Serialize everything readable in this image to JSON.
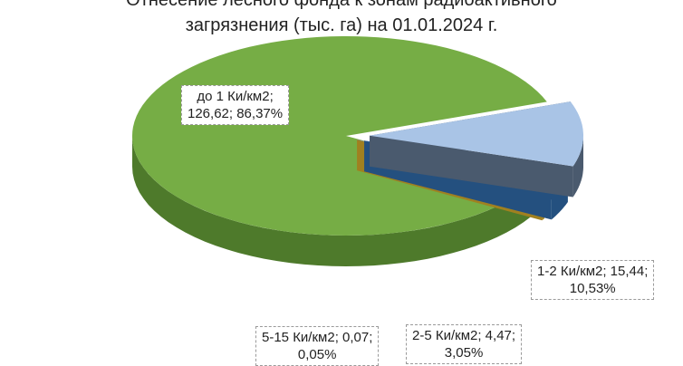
{
  "chart_data": {
    "type": "pie",
    "title_lines": [
      "Отнесение лесного фонда к зонам радиоактивного",
      "загрязнения  (тыс. га) на 01.01.2024 г."
    ],
    "slices": [
      {
        "category": "до 1 Ки/км2",
        "value": 126.62,
        "percent": 86.37,
        "label_line1": "до 1 Ки/км2;",
        "label_line2": "126,62; 86,37%",
        "color": "#76AD45",
        "side": "#4E7A2B"
      },
      {
        "category": "1-2 Ки/км2",
        "value": 15.44,
        "percent": 10.53,
        "label_line1": "1-2 Ки/км2; 15,44;",
        "label_line2": "10,53%",
        "color": "#A9C4E6",
        "side": "#4A5A6E"
      },
      {
        "category": "2-5 Ки/км2",
        "value": 4.47,
        "percent": 3.05,
        "label_line1": "2-5 Ки/км2; 4,47;",
        "label_line2": "3,05%",
        "color": "#3E7FC4",
        "side": "#24507F"
      },
      {
        "category": "5-15 Ки/км2",
        "value": 0.07,
        "percent": 0.05,
        "label_line1": "5-15 Ки/км2; 0,07;",
        "label_line2": "0,05%",
        "color": "#E7E6E6",
        "side": "#A08020"
      }
    ]
  }
}
